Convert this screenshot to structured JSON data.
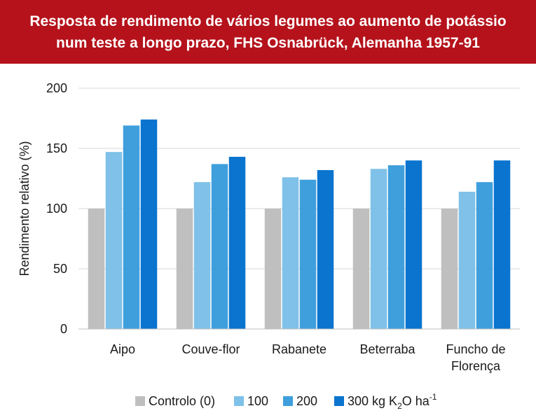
{
  "header": {
    "title_line1": "Resposta de rendimento de vários legumes ao aumento de potássio",
    "title_line2": "num teste a longo prazo, FHS Osnabrück, Alemanha 1957-91"
  },
  "legend": {
    "controlo": "Controlo (0)",
    "k100": "100",
    "k200": "200",
    "k300_prefix": "300 kg K",
    "k300_sub": "2",
    "k300_mid": "O ha",
    "k300_sup": "-1"
  },
  "chart_data": {
    "type": "bar",
    "title": "Resposta de rendimento de vários legumes ao aumento de potássio num teste a longo prazo, FHS Osnabrück, Alemanha 1957-91",
    "xlabel": "",
    "ylabel": "Rendimento relativo (%)",
    "ylim": [
      0,
      200
    ],
    "yticks": [
      0,
      50,
      100,
      150,
      200
    ],
    "grid": true,
    "legend_position": "bottom",
    "categories": [
      [
        "Aipo"
      ],
      [
        "Couve-flor"
      ],
      [
        "Rabanete"
      ],
      [
        "Beterraba"
      ],
      [
        "Funcho de",
        "Florença"
      ]
    ],
    "series": [
      {
        "name": "Controlo (0)",
        "color": "#bfbfbf",
        "values": [
          100,
          100,
          100,
          100,
          100
        ]
      },
      {
        "name": "100",
        "color": "#7fc1e8",
        "values": [
          147,
          122,
          126,
          133,
          114
        ]
      },
      {
        "name": "200",
        "color": "#3f9fdc",
        "values": [
          169,
          137,
          124,
          136,
          122
        ]
      },
      {
        "name": "300 kg K2O ha-1",
        "color": "#0a74cf",
        "values": [
          174,
          143,
          132,
          140,
          140
        ]
      }
    ]
  }
}
